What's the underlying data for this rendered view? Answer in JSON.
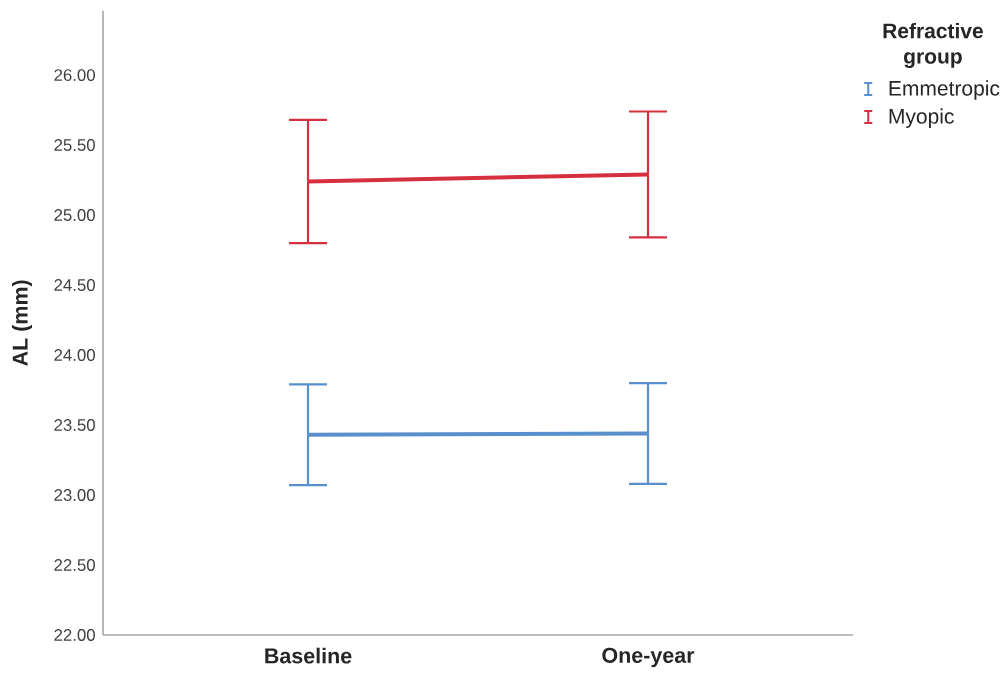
{
  "chart_data": {
    "type": "line",
    "ylabel": "AL (mm)",
    "legend_title": "Refractive group",
    "categories": [
      "Baseline",
      "One-year"
    ],
    "series": [
      {
        "name": "Emmetropic",
        "color": "#5a8fcd",
        "values": [
          23.43,
          23.44
        ],
        "errors": [
          0.36,
          0.36
        ]
      },
      {
        "name": "Myopic",
        "color": "#d63040",
        "values": [
          25.24,
          25.29
        ],
        "errors": [
          0.44,
          0.45
        ]
      }
    ],
    "ylim": [
      22,
      26.46
    ],
    "yticks": [
      {
        "value": 22,
        "label": "22.00"
      },
      {
        "value": 22.5,
        "label": "22.50"
      },
      {
        "value": 23,
        "label": "23.00"
      },
      {
        "value": 23.5,
        "label": "23.50"
      },
      {
        "value": 24,
        "label": "24.00"
      },
      {
        "value": 24.5,
        "label": "24.50"
      },
      {
        "value": 25,
        "label": "25.00"
      },
      {
        "value": 25.5,
        "label": "25.50"
      },
      {
        "value": 26,
        "label": "26.00"
      }
    ],
    "legend": "top right",
    "marker": "none",
    "line_style": "solid"
  }
}
